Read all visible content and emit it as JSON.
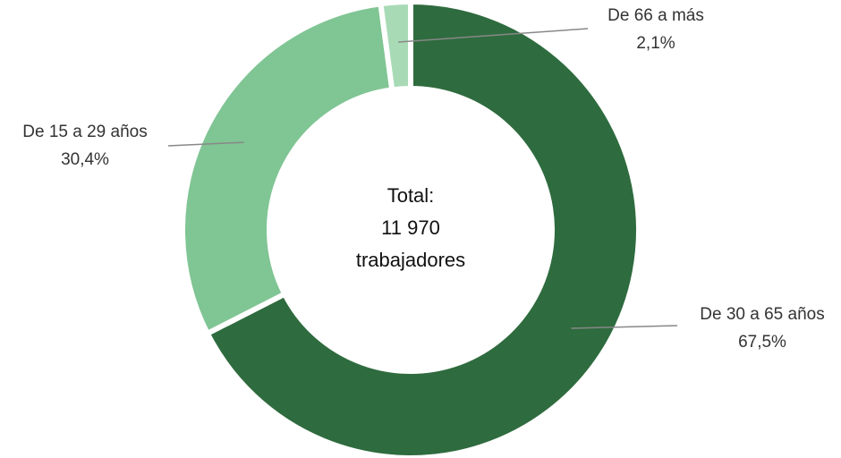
{
  "chart_data": {
    "type": "pie",
    "categories": [
      "De 30 a 65 años",
      "De 15 a 29 años",
      "De 66 a más"
    ],
    "values": [
      67.5,
      30.4,
      2.1
    ],
    "value_labels": [
      "67,5%",
      "30,4%",
      "2,1%"
    ],
    "colors": [
      "#2e6b3e",
      "#80c594",
      "#a8dab6"
    ],
    "center_text": [
      "Total:",
      "11 970",
      "trabajadores"
    ]
  }
}
